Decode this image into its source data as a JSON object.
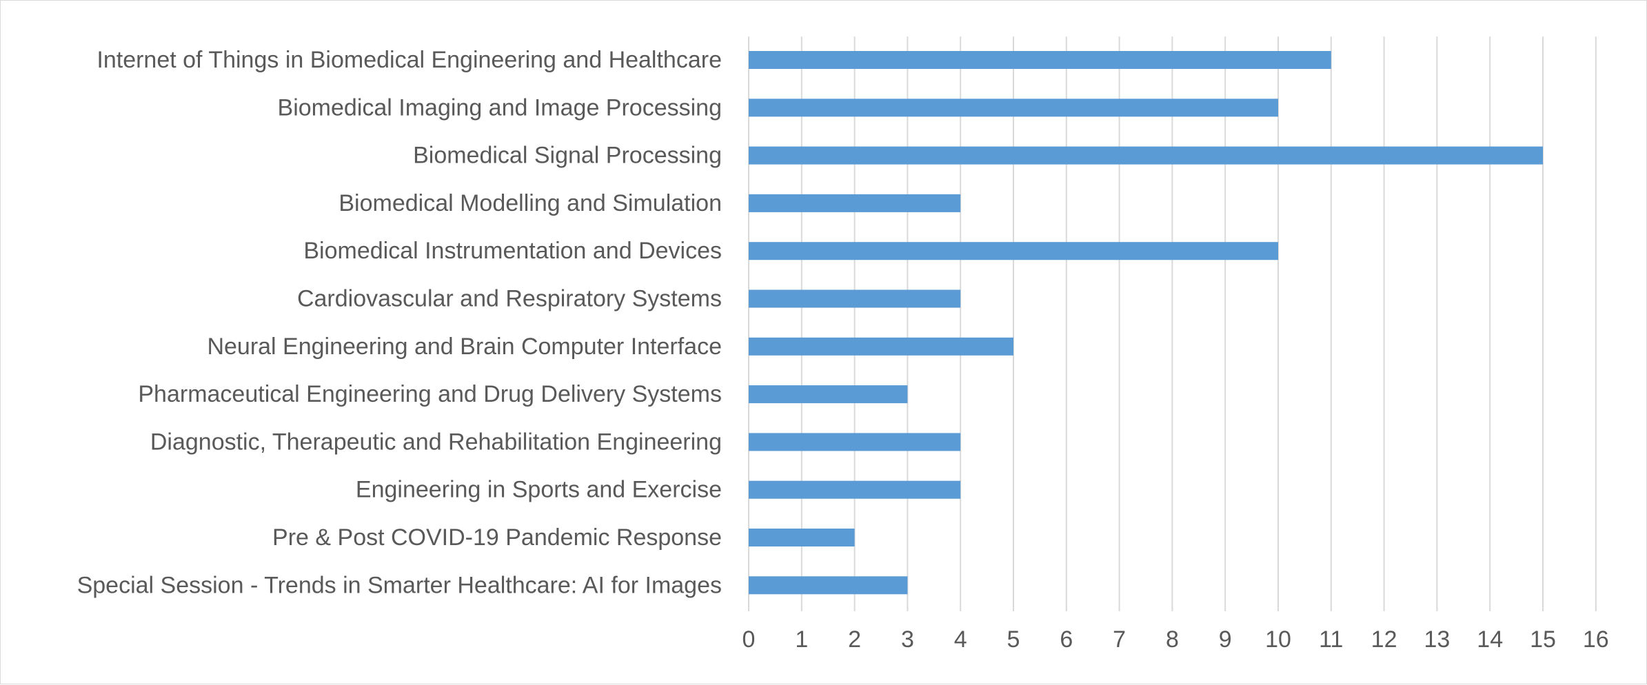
{
  "chart_data": {
    "type": "bar",
    "orientation": "horizontal",
    "title": "",
    "xlabel": "",
    "ylabel": "",
    "categories": [
      "Internet of Things in Biomedical Engineering and Healthcare",
      "Biomedical Imaging and Image Processing",
      "Biomedical Signal Processing",
      "Biomedical Modelling and Simulation",
      "Biomedical Instrumentation and Devices",
      "Cardiovascular and Respiratory Systems",
      "Neural Engineering and Brain Computer Interface",
      "Pharmaceutical Engineering and Drug Delivery Systems",
      "Diagnostic, Therapeutic and Rehabilitation Engineering",
      "Engineering in Sports and Exercise",
      "Pre & Post COVID-19 Pandemic Response",
      "Special Session - Trends in Smarter Healthcare: AI for Images"
    ],
    "values": [
      11,
      10,
      15,
      4,
      10,
      4,
      5,
      3,
      4,
      4,
      2,
      3
    ],
    "xlim": [
      0,
      16
    ],
    "xticks": [
      "0",
      "1",
      "2",
      "3",
      "4",
      "5",
      "6",
      "7",
      "8",
      "9",
      "10",
      "11",
      "12",
      "13",
      "14",
      "15",
      "16"
    ],
    "grid": true,
    "legend": "none",
    "bar_color": "#5b9bd5",
    "grid_color": "#d9d9d9",
    "text_color": "#595959"
  }
}
